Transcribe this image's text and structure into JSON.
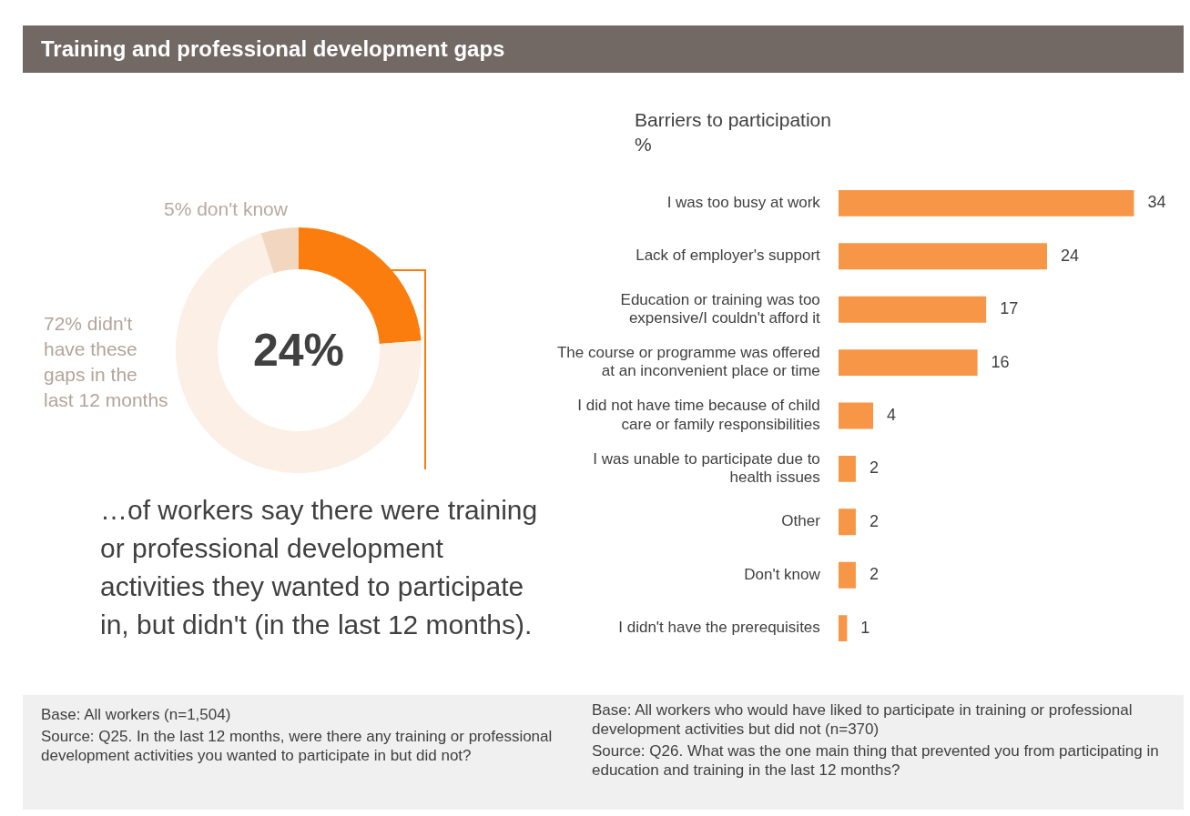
{
  "chart_data": [
    {
      "type": "donut",
      "title": "Training and professional development gaps",
      "categories": [
        null,
        "didn't have these gaps in the last 12 months",
        "don't know"
      ],
      "values": [
        24,
        72,
        5
      ],
      "value_labels": [
        "24%",
        "72%",
        "5%"
      ],
      "colors": [
        "#fb7d0e",
        "#fbefe6",
        "#f3d6bf"
      ],
      "annotations": [
        "…of workers say there were training or professional development activities they wanted to participate in, but didn't (in the last 12 months).",
        "Base: All workers (n=1,504)",
        "Source: Q25. In the last 12 months, were there any training or professional development activities you wanted to participate in but did not?"
      ]
    },
    {
      "type": "bar",
      "orientation": "horizontal",
      "title": "Barriers to participation",
      "subtitle": "%",
      "categories": [
        "I was too busy at work",
        "Lack of employer's support",
        "Education or training was too expensive/I couldn't afford it",
        "The course or programme was offered at an inconvenient place or time",
        "I did not have time because of child care or family responsibilities",
        "I was unable to participate due to health issues",
        "Other",
        "Don't know",
        "I didn't have the prerequisites"
      ],
      "values": [
        34,
        24,
        17,
        16,
        4,
        2,
        2,
        2,
        1
      ],
      "color": "#f79646",
      "data_labels": true,
      "annotations": [
        "Base: All workers who would have liked to participate in training or professional development activities but did not (n=370)",
        "Source: Q26. What was the one main thing that prevented you from participating in education and training in the last 12 months?"
      ]
    }
  ]
}
